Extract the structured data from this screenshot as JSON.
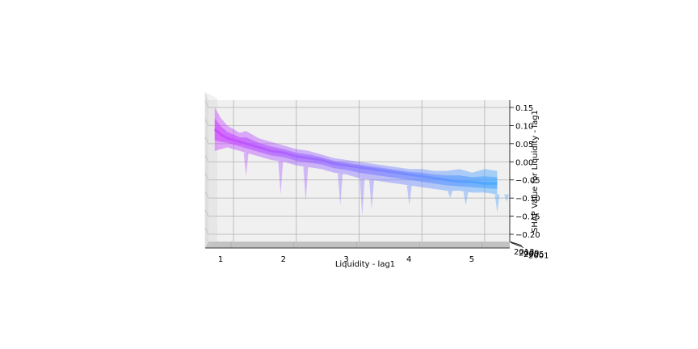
{
  "chart_data": {
    "type": "area",
    "title": "",
    "xlabel": "Liquidity - lag1",
    "zlabel": "SHAP Value for Liquidity - lag1",
    "x_ticks": [
      "1",
      "2",
      "3",
      "4",
      "5"
    ],
    "z_ticks": [
      "0.15",
      "0.10",
      "0.05",
      "0.00",
      "−0.05",
      "−0.10",
      "−0.15",
      "−0.20"
    ],
    "y_ticks": [
      "2013",
      "2009",
      "2005",
      "2001"
    ],
    "xlim": [
      0.6,
      5.4
    ],
    "zlim": [
      -0.22,
      0.17
    ],
    "grid": true,
    "colormap": [
      "#cc44ff",
      "#44a8ff"
    ],
    "series": [
      {
        "x": [
          0.7,
          0.8,
          0.9,
          1.0,
          1.1,
          1.2,
          1.4,
          1.6,
          1.8,
          2.0,
          2.2,
          2.4,
          2.6,
          2.8,
          3.0,
          3.2,
          3.4,
          3.6,
          3.8,
          4.0,
          4.2,
          4.4,
          4.6,
          4.8,
          5.0,
          5.2
        ],
        "upper": [
          0.15,
          0.12,
          0.1,
          0.09,
          0.08,
          0.085,
          0.065,
          0.055,
          0.045,
          0.035,
          0.03,
          0.02,
          0.01,
          0.005,
          0.0,
          -0.005,
          -0.01,
          -0.015,
          -0.02,
          -0.02,
          -0.025,
          -0.025,
          -0.02,
          -0.03,
          -0.02,
          -0.025
        ],
        "center": [
          0.09,
          0.075,
          0.065,
          0.06,
          0.055,
          0.05,
          0.04,
          0.03,
          0.025,
          0.015,
          0.01,
          0.005,
          -0.005,
          -0.01,
          -0.015,
          -0.02,
          -0.025,
          -0.03,
          -0.035,
          -0.04,
          -0.045,
          -0.05,
          -0.055,
          -0.055,
          -0.06,
          -0.06
        ],
        "lower": [
          0.03,
          0.035,
          0.04,
          0.035,
          0.03,
          0.025,
          0.015,
          0.005,
          0.0,
          -0.01,
          -0.015,
          -0.02,
          -0.03,
          -0.035,
          -0.045,
          -0.05,
          -0.055,
          -0.06,
          -0.065,
          -0.07,
          -0.075,
          -0.08,
          -0.08,
          -0.085,
          -0.085,
          -0.09
        ]
      }
    ],
    "outliers": [
      {
        "x": 1.2,
        "low": -0.04
      },
      {
        "x": 1.75,
        "low": -0.09
      },
      {
        "x": 2.15,
        "low": -0.11
      },
      {
        "x": 2.7,
        "low": -0.12
      },
      {
        "x": 3.05,
        "low": -0.15
      },
      {
        "x": 3.2,
        "low": -0.13
      },
      {
        "x": 3.8,
        "low": -0.12
      },
      {
        "x": 4.45,
        "low": -0.1
      },
      {
        "x": 4.7,
        "low": -0.12
      },
      {
        "x": 5.2,
        "low": -0.14
      },
      {
        "x": 5.35,
        "low": -0.11
      }
    ]
  }
}
